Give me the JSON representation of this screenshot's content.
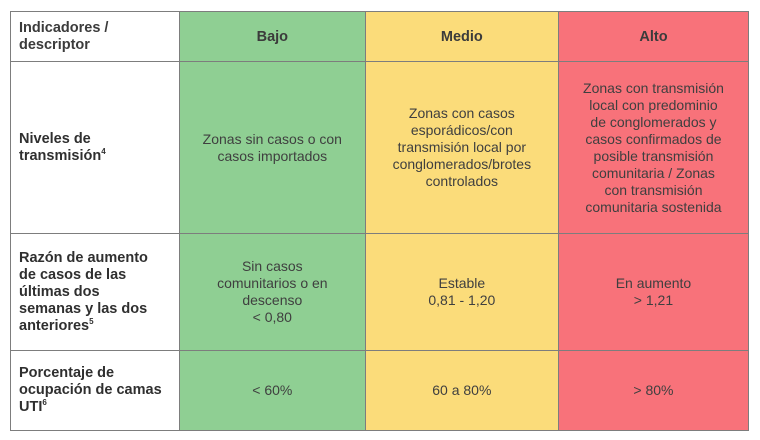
{
  "header": {
    "indicator": "Indicadores /\ndescriptor",
    "low": "Bajo",
    "medium": "Medio",
    "high": "Alto"
  },
  "rows": [
    {
      "label": "Niveles de\ntransmisión",
      "footnote": "4",
      "low": "Zonas sin casos o con\ncasos importados",
      "medium": "Zonas con casos\nesporádicos/con\ntransmisión local por\nconglomerados/brotes\ncontrolados",
      "high": "Zonas con transmisión\nlocal con predominio\nde conglomerados y\ncasos confirmados de\nposible transmisión\ncomunitaria / Zonas\ncon transmisión\ncomunitaria sostenida"
    },
    {
      "label": "Razón de aumento\nde casos de las\núltimas dos\nsemanas y las dos\nanteriores",
      "footnote": "5",
      "low": "Sin casos\ncomunitarios o en\ndescenso\n< 0,80",
      "medium": "Estable\n0,81 - 1,20",
      "high": "En aumento\n> 1,21"
    },
    {
      "label": "Porcentaje de\nocupación de camas\nUTI",
      "footnote": "6",
      "low": "< 60%",
      "medium": "60 a 80%",
      "high": "> 80%"
    }
  ],
  "colors": {
    "low": "#8fcf93",
    "medium": "#fbdc7a",
    "high": "#f8727a",
    "border": "#7d7d7d"
  }
}
